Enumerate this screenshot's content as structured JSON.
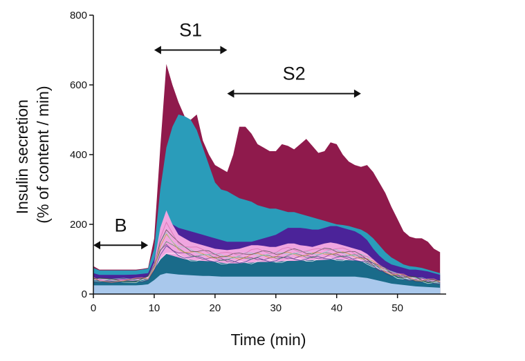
{
  "chart_data": {
    "type": "area",
    "title": "",
    "xlabel": "Time (min)",
    "ylabel_lines": [
      "Insulin secretion",
      "(% of content / min)"
    ],
    "xlim": [
      0,
      58
    ],
    "ylim": [
      0,
      800
    ],
    "xticks": [
      0,
      10,
      20,
      30,
      40,
      50
    ],
    "yticks": [
      0,
      200,
      400,
      600,
      800
    ],
    "grid": false,
    "legend": "none",
    "colors": {
      "maroon": "#8f1a4c",
      "teal": "#2a9cba",
      "indigo": "#4b2399",
      "pink": "#f0a6e0",
      "lightblue": "#a9c8ec",
      "base": "#1a6b8a"
    },
    "x": [
      0,
      1,
      3,
      5,
      7,
      8,
      9,
      10,
      11,
      12,
      13,
      14,
      15,
      16,
      17,
      18,
      19,
      20,
      21,
      22,
      23,
      24,
      25,
      26,
      27,
      28,
      29,
      30,
      31,
      32,
      33,
      34,
      35,
      36,
      37,
      38,
      39,
      40,
      41,
      42,
      43,
      44,
      45,
      46,
      47,
      48,
      49,
      50,
      51,
      52,
      53,
      54,
      55,
      56,
      57
    ],
    "series": [
      {
        "color_key": "maroon",
        "values": [
          80,
          70,
          70,
          70,
          70,
          72,
          75,
          160,
          420,
          660,
          600,
          550,
          510,
          500,
          515,
          440,
          400,
          370,
          360,
          350,
          400,
          480,
          480,
          460,
          430,
          420,
          410,
          410,
          430,
          425,
          415,
          430,
          445,
          425,
          405,
          410,
          435,
          430,
          400,
          380,
          370,
          365,
          370,
          350,
          320,
          290,
          250,
          215,
          180,
          165,
          160,
          160,
          150,
          130,
          120
        ]
      },
      {
        "color_key": "teal",
        "values": [
          75,
          68,
          68,
          68,
          68,
          70,
          73,
          130,
          300,
          420,
          480,
          515,
          510,
          500,
          470,
          420,
          370,
          320,
          300,
          295,
          285,
          275,
          270,
          265,
          255,
          250,
          245,
          245,
          240,
          235,
          235,
          230,
          225,
          220,
          215,
          210,
          205,
          200,
          198,
          195,
          190,
          185,
          175,
          160,
          140,
          120,
          105,
          95,
          85,
          80,
          78,
          75,
          70,
          65,
          60
        ]
      },
      {
        "color_key": "indigo",
        "values": [
          60,
          55,
          55,
          55,
          56,
          58,
          60,
          100,
          170,
          210,
          200,
          190,
          185,
          180,
          175,
          170,
          165,
          160,
          155,
          150,
          150,
          150,
          150,
          150,
          155,
          160,
          165,
          170,
          180,
          190,
          190,
          190,
          188,
          185,
          185,
          190,
          195,
          195,
          190,
          185,
          180,
          170,
          155,
          130,
          110,
          95,
          85,
          80,
          75,
          70,
          70,
          68,
          65,
          60,
          55
        ]
      },
      {
        "color_key": "pink",
        "values": [
          45,
          42,
          42,
          42,
          43,
          45,
          50,
          90,
          190,
          240,
          200,
          170,
          160,
          150,
          145,
          140,
          135,
          130,
          128,
          126,
          128,
          130,
          135,
          140,
          140,
          138,
          135,
          135,
          140,
          145,
          145,
          140,
          138,
          135,
          140,
          145,
          148,
          145,
          140,
          135,
          130,
          125,
          115,
          100,
          85,
          75,
          65,
          60,
          55,
          50,
          48,
          45,
          42,
          40,
          38
        ]
      },
      {
        "color_key": "base",
        "values": [
          40,
          38,
          38,
          38,
          38,
          40,
          42,
          70,
          100,
          115,
          110,
          105,
          100,
          98,
          96,
          95,
          94,
          92,
          90,
          88,
          88,
          88,
          90,
          90,
          92,
          92,
          92,
          92,
          94,
          95,
          95,
          96,
          96,
          97,
          97,
          98,
          99,
          99,
          98,
          97,
          96,
          94,
          90,
          80,
          70,
          62,
          55,
          50,
          45,
          42,
          40,
          38,
          36,
          34,
          32
        ]
      },
      {
        "color_key": "lightblue",
        "values": [
          25,
          25,
          25,
          25,
          25,
          26,
          28,
          40,
          55,
          60,
          58,
          56,
          55,
          54,
          53,
          52,
          52,
          51,
          50,
          50,
          50,
          50,
          50,
          50,
          50,
          50,
          50,
          50,
          50,
          50,
          50,
          50,
          50,
          50,
          50,
          50,
          50,
          50,
          50,
          50,
          50,
          48,
          46,
          42,
          38,
          34,
          30,
          28,
          26,
          24,
          22,
          21,
          20,
          19,
          18
        ]
      }
    ],
    "annotations": [
      {
        "label": "B",
        "x_start": 0,
        "x_end": 9,
        "y": 140
      },
      {
        "label": "S1",
        "x_start": 10,
        "x_end": 22,
        "y": 700
      },
      {
        "label": "S2",
        "x_start": 22,
        "x_end": 44,
        "y": 575
      }
    ]
  }
}
